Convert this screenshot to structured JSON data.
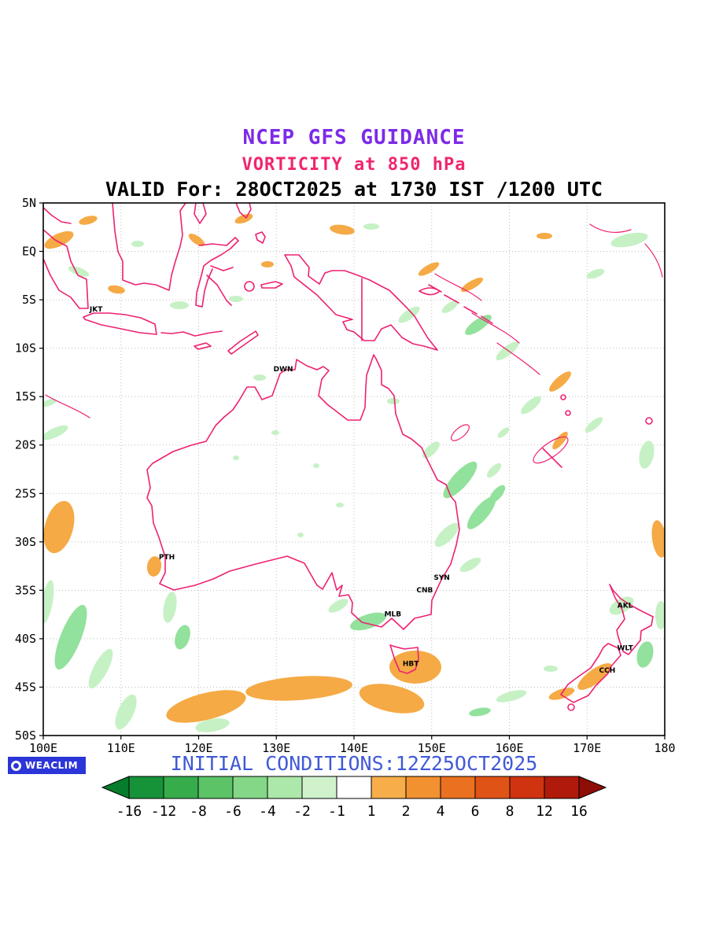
{
  "titles": {
    "line1": "NCEP GFS GUIDANCE",
    "line2": "VORTICITY at 850 hPa",
    "line3": "VALID For: 28OCT2025 at 1730 IST /1200 UTC"
  },
  "footer": {
    "logo_text": "WEACLIM",
    "initial_conditions": "INITIAL CONDITIONS:12Z25OCT2025"
  },
  "colors": {
    "title1": "#7d2ae8",
    "title2": "#f0256e",
    "title3": "#000000",
    "coastline": "#ee2172",
    "initial_conditions": "#4059d8",
    "logo_bg": "#2b35d8",
    "neg_light": "#c6f1c5",
    "neg_mid": "#92e19c",
    "pos_light": "#f5aa45"
  },
  "map": {
    "lon_range": [
      100,
      180
    ],
    "lat_range": [
      5,
      -50
    ],
    "lon_ticks": [
      "100E",
      "110E",
      "120E",
      "130E",
      "140E",
      "150E",
      "160E",
      "170E",
      "180"
    ],
    "lat_ticks": [
      "5N",
      "EQ",
      "5S",
      "10S",
      "15S",
      "20S",
      "25S",
      "30S",
      "35S",
      "40S",
      "45S",
      "50S"
    ],
    "cities": [
      {
        "label": "JKT",
        "lon": 106.8,
        "lat": -6.2
      },
      {
        "label": "DWN",
        "lon": 130.9,
        "lat": -12.4
      },
      {
        "label": "PTH",
        "lon": 115.9,
        "lat": -31.8
      },
      {
        "label": "SYN",
        "lon": 151.3,
        "lat": -33.9
      },
      {
        "label": "CNB",
        "lon": 149.1,
        "lat": -35.2
      },
      {
        "label": "MLB",
        "lon": 145.0,
        "lat": -37.7
      },
      {
        "label": "HBT",
        "lon": 147.3,
        "lat": -42.8
      },
      {
        "label": "AKL",
        "lon": 174.9,
        "lat": -36.8
      },
      {
        "label": "WLT",
        "lon": 174.9,
        "lat": -41.2
      },
      {
        "label": "CCH",
        "lon": 172.6,
        "lat": -43.5
      }
    ]
  },
  "chart_data": {
    "type": "heatmap",
    "title": "NCEP GFS GUIDANCE",
    "subtitle": "VORTICITY at 850 hPa",
    "valid_line": "VALID For: 28OCT2025 at 1730 IST /1200 UTC",
    "initial_conditions": "INITIAL CONDITIONS:12Z25OCT2025",
    "x_axis": {
      "range": [
        100,
        180
      ],
      "ticks": [
        "100E",
        "110E",
        "120E",
        "130E",
        "140E",
        "150E",
        "160E",
        "170E",
        "180"
      ]
    },
    "y_axis": {
      "range": [
        5,
        -50
      ],
      "ticks": [
        "5N",
        "EQ",
        "5S",
        "10S",
        "15S",
        "20S",
        "25S",
        "30S",
        "35S",
        "40S",
        "45S",
        "50S"
      ]
    },
    "grid": true,
    "legend_position": "bottom",
    "colorbar": {
      "boundary_labels": [
        "-16",
        "-12",
        "-8",
        "-6",
        "-4",
        "-2",
        "-1",
        "1",
        "2",
        "4",
        "6",
        "8",
        "12",
        "16"
      ],
      "segment_colors": [
        "#077c2b",
        "#169238",
        "#36ac4b",
        "#5cc467",
        "#84d787",
        "#abe8a9",
        "#cff2cb",
        "#ffffff",
        "#f6ad4a",
        "#f29130",
        "#ea711f",
        "#e05317",
        "#cf3310",
        "#af1a0b",
        "#8e0d07"
      ]
    },
    "stations": [
      "JKT",
      "DWN",
      "PTH",
      "SYN",
      "CNB",
      "MLB",
      "HBT",
      "AKL",
      "WLT",
      "CCH"
    ]
  }
}
